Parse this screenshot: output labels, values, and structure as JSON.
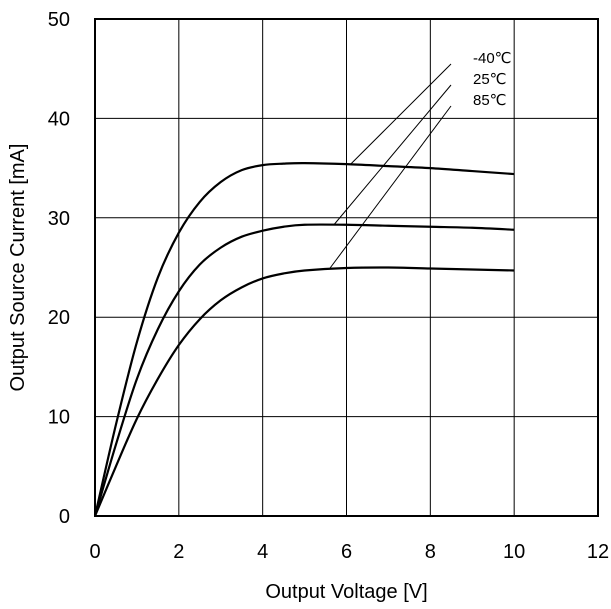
{
  "chart_data": {
    "type": "line",
    "title": "",
    "xlabel": "Output Voltage [V]",
    "ylabel": "Output Source Current [mA]",
    "xlim": [
      0,
      12
    ],
    "ylim": [
      0,
      50
    ],
    "xticks": [
      0,
      2,
      4,
      6,
      8,
      10,
      12
    ],
    "yticks": [
      0,
      10,
      20,
      30,
      40,
      50
    ],
    "grid": true,
    "legend_position": "top-right, labels with leader lines",
    "series": [
      {
        "name": "-40℃",
        "x": [
          0,
          0.5,
          1,
          1.5,
          2,
          2.5,
          3,
          3.5,
          4,
          4.5,
          5,
          6,
          7,
          8,
          9,
          10
        ],
        "values": [
          0,
          9.2,
          17.5,
          24,
          28.5,
          31.6,
          33.6,
          34.8,
          35.3,
          35.45,
          35.5,
          35.4,
          35.2,
          35,
          34.7,
          34.4
        ]
      },
      {
        "name": "25℃",
        "x": [
          0,
          0.5,
          1,
          1.5,
          2,
          2.5,
          3,
          3.5,
          4,
          4.5,
          5,
          6,
          7,
          8,
          9,
          10
        ],
        "values": [
          0,
          7.2,
          13.8,
          18.8,
          22.6,
          25.3,
          27,
          28.1,
          28.7,
          29.1,
          29.3,
          29.3,
          29.2,
          29.1,
          29,
          28.8
        ]
      },
      {
        "name": "85℃",
        "x": [
          0,
          0.5,
          1,
          1.5,
          2,
          2.5,
          3,
          3.5,
          4,
          4.5,
          5,
          6,
          7,
          8,
          9,
          10
        ],
        "values": [
          0,
          5,
          9.8,
          13.8,
          17.2,
          19.8,
          21.7,
          23,
          23.9,
          24.4,
          24.7,
          24.95,
          25,
          24.9,
          24.8,
          24.7
        ]
      }
    ],
    "legend_anchor_points": [
      {
        "series": "-40℃",
        "x": 6.1,
        "y": 35.4
      },
      {
        "series": "25℃",
        "x": 5.7,
        "y": 29.3
      },
      {
        "series": "85℃",
        "x": 5.6,
        "y": 24.9
      }
    ]
  }
}
